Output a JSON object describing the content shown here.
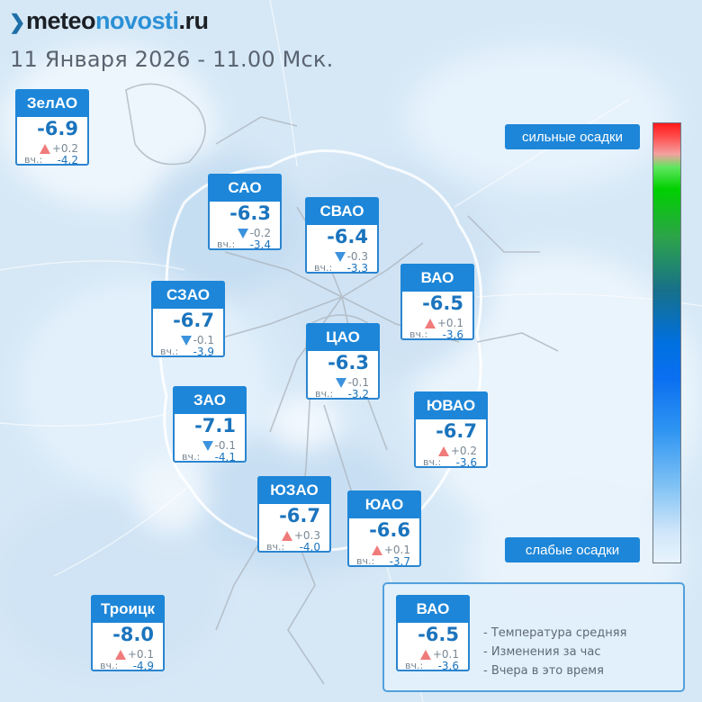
{
  "header": {
    "logo_part1": "meteo",
    "logo_part2": "novosti",
    "logo_part3": ".ru",
    "subtitle": "11 Января 2026 - 11.00 Мск."
  },
  "scale": {
    "top_label": "сильные осадки",
    "bottom_label": "слабые осадки"
  },
  "yesterday_label": "вч.:",
  "districts": [
    {
      "id": "zelao",
      "name": "ЗелАО",
      "temp": "-6.9",
      "change": "+0.2",
      "dir": "up",
      "yesterday": "-4.2"
    },
    {
      "id": "sao",
      "name": "САО",
      "temp": "-6.3",
      "change": "-0.2",
      "dir": "down",
      "yesterday": "-3.4"
    },
    {
      "id": "svao",
      "name": "СВАО",
      "temp": "-6.4",
      "change": "-0.3",
      "dir": "down",
      "yesterday": "-3.3"
    },
    {
      "id": "vao",
      "name": "ВАО",
      "temp": "-6.5",
      "change": "+0.1",
      "dir": "up",
      "yesterday": "-3.6"
    },
    {
      "id": "szao",
      "name": "СЗАО",
      "temp": "-6.7",
      "change": "-0.1",
      "dir": "down",
      "yesterday": "-3.9"
    },
    {
      "id": "cao",
      "name": "ЦАО",
      "temp": "-6.3",
      "change": "-0.1",
      "dir": "down",
      "yesterday": "-3.2"
    },
    {
      "id": "zao",
      "name": "ЗАО",
      "temp": "-7.1",
      "change": "-0.1",
      "dir": "down",
      "yesterday": "-4.1"
    },
    {
      "id": "yuvao",
      "name": "ЮВАО",
      "temp": "-6.7",
      "change": "+0.2",
      "dir": "up",
      "yesterday": "-3.6"
    },
    {
      "id": "yuzao",
      "name": "ЮЗАО",
      "temp": "-6.7",
      "change": "+0.3",
      "dir": "up",
      "yesterday": "-4.0"
    },
    {
      "id": "yuao",
      "name": "ЮАО",
      "temp": "-6.6",
      "change": "+0.1",
      "dir": "up",
      "yesterday": "-3.7"
    },
    {
      "id": "troick",
      "name": "Троицк",
      "temp": "-8.0",
      "change": "+0.1",
      "dir": "up",
      "yesterday": "-4.9"
    }
  ],
  "legend": {
    "sample": {
      "id": "legend-sample",
      "name": "ВАО",
      "temp": "-6.5",
      "change": "+0.1",
      "dir": "up",
      "yesterday": "-3.6"
    },
    "items": [
      "- Температура средняя",
      "- Изменения за час",
      "- Вчера в это время"
    ]
  }
}
